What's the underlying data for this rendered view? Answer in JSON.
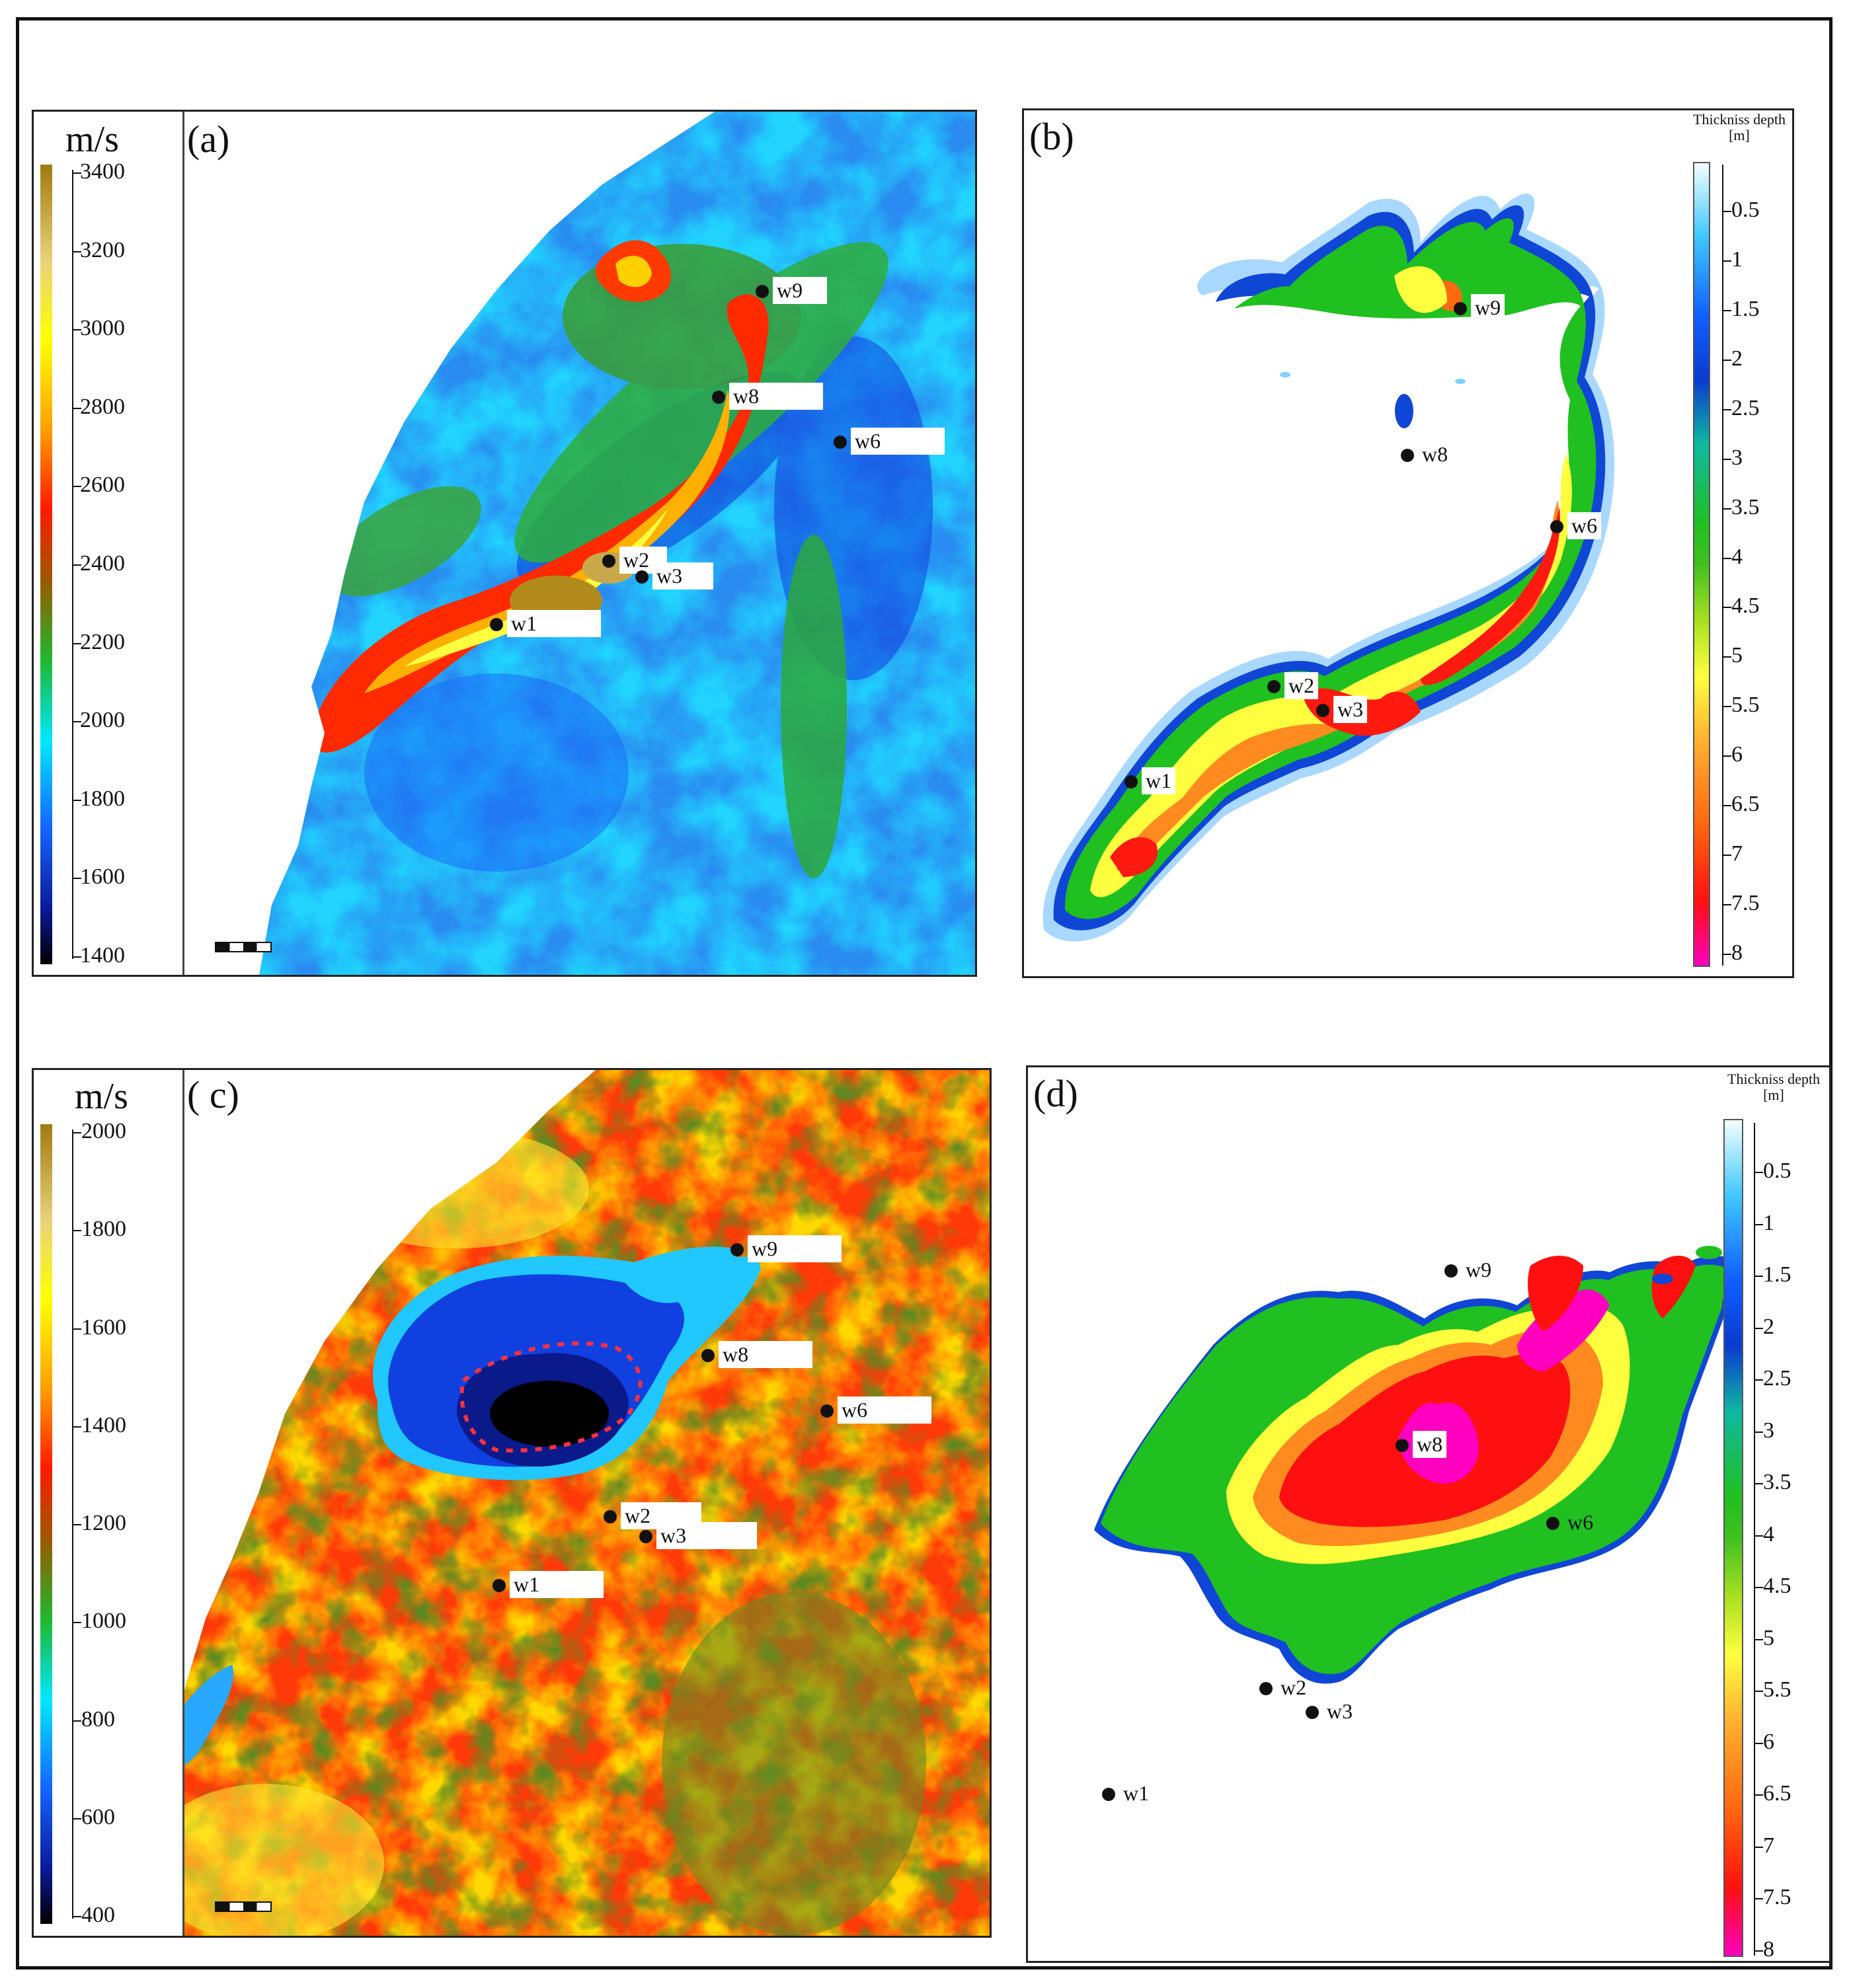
{
  "panels": {
    "a": {
      "label": "(a)",
      "unit": "m/s",
      "ticks": [
        "3400",
        "3200",
        "3000",
        "2800",
        "2600",
        "2400",
        "2200",
        "2000",
        "1800",
        "1600",
        "1400"
      ],
      "wells": [
        {
          "name": "w9"
        },
        {
          "name": "w8"
        },
        {
          "name": "w6"
        },
        {
          "name": "w2"
        },
        {
          "name": "w3"
        },
        {
          "name": "w1"
        }
      ]
    },
    "b": {
      "label": "(b)",
      "legend_title_1": "Thickniss depth",
      "legend_title_2": "[m]",
      "ticks": [
        "0.5",
        "1",
        "1.5",
        "2",
        "2.5",
        "3",
        "3.5",
        "4",
        "4.5",
        "5",
        "5.5",
        "6",
        "6.5",
        "7",
        "7.5",
        "8"
      ],
      "wells": [
        {
          "name": "w9"
        },
        {
          "name": "w8"
        },
        {
          "name": "w6"
        },
        {
          "name": "w2"
        },
        {
          "name": "w3"
        },
        {
          "name": "w1"
        }
      ]
    },
    "c": {
      "label": "( c)",
      "unit": "m/s",
      "ticks": [
        "2000",
        "1800",
        "1600",
        "1400",
        "1200",
        "1000",
        "800",
        "600",
        "400"
      ],
      "wells": [
        {
          "name": "w9"
        },
        {
          "name": "w8"
        },
        {
          "name": "w6"
        },
        {
          "name": "w2"
        },
        {
          "name": "w3"
        },
        {
          "name": "w1"
        }
      ]
    },
    "d": {
      "label": "(d)",
      "legend_title_1": "Thickniss depth",
      "legend_title_2": "[m]",
      "ticks": [
        "0.5",
        "1",
        "1.5",
        "2",
        "2.5",
        "3",
        "3.5",
        "4",
        "4.5",
        "5",
        "5.5",
        "6",
        "6.5",
        "7",
        "7.5",
        "8"
      ],
      "wells": [
        {
          "name": "w9"
        },
        {
          "name": "w8"
        },
        {
          "name": "w6"
        },
        {
          "name": "w2"
        },
        {
          "name": "w3"
        },
        {
          "name": "w1"
        }
      ]
    }
  },
  "colors": {
    "velocity_ramp": [
      "#a07a10",
      "#e8d27a",
      "#ffff00",
      "#ffa000",
      "#ff1a00",
      "#9a5a00",
      "#1fb830",
      "#00e8ff",
      "#1565ff",
      "#0a1a9a",
      "#000000"
    ],
    "thickness_ramp": [
      "#e8ffff",
      "#40c8ff",
      "#1060ff",
      "#0a3ad0",
      "#10b8a0",
      "#20c020",
      "#40c020",
      "#a8e020",
      "#ffff40",
      "#ffb030",
      "#ff6a10",
      "#ff1010",
      "#ff00c0"
    ]
  }
}
